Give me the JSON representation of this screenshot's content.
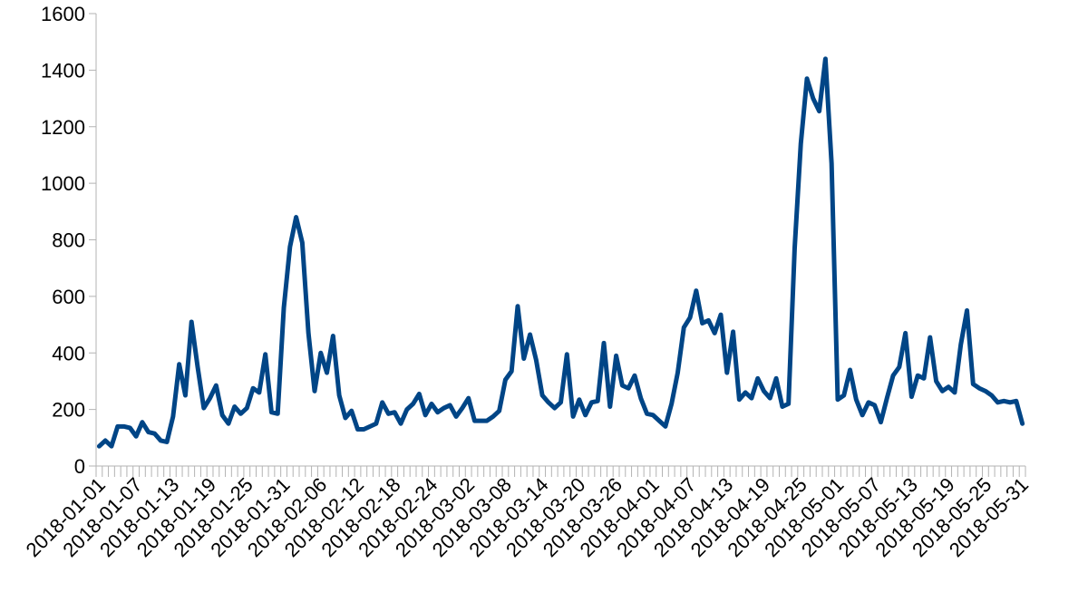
{
  "chart_data": {
    "type": "line",
    "title": "",
    "xlabel": "",
    "ylabel": "",
    "ylim": [
      0,
      1600
    ],
    "yticks": [
      0,
      200,
      400,
      600,
      800,
      1000,
      1200,
      1400,
      1600
    ],
    "x_start": "2018-01-01",
    "x_end": "2018-05-31",
    "xtick_labels": [
      "2018-01-01",
      "2018-01-07",
      "2018-01-13",
      "2018-01-19",
      "2018-01-25",
      "2018-01-31",
      "2018-02-06",
      "2018-02-12",
      "2018-02-18",
      "2018-02-24",
      "2018-03-02",
      "2018-03-08",
      "2018-03-14",
      "2018-03-20",
      "2018-03-26",
      "2018-04-01",
      "2018-04-07",
      "2018-04-13",
      "2018-04-19",
      "2018-04-25",
      "2018-05-01",
      "2018-05-07",
      "2018-05-13",
      "2018-05-19",
      "2018-05-25",
      "2018-05-31"
    ],
    "grid": false,
    "legend": "none",
    "line_color": "#004586",
    "series": [
      {
        "values": [
          70,
          90,
          70,
          140,
          140,
          135,
          105,
          155,
          120,
          115,
          90,
          85,
          175,
          360,
          250,
          510,
          350,
          205,
          240,
          285,
          180,
          150,
          210,
          185,
          205,
          275,
          260,
          395,
          190,
          185,
          560,
          775,
          880,
          790,
          470,
          265,
          400,
          330,
          460,
          250,
          170,
          195,
          130,
          130,
          140,
          150,
          225,
          185,
          190,
          150,
          200,
          220,
          255,
          180,
          220,
          190,
          205,
          215,
          175,
          205,
          240,
          160,
          160,
          160,
          175,
          195,
          305,
          335,
          565,
          380,
          465,
          375,
          250,
          225,
          205,
          225,
          395,
          175,
          235,
          180,
          225,
          230,
          435,
          210,
          390,
          285,
          275,
          320,
          240,
          185,
          180,
          160,
          140,
          220,
          330,
          490,
          525,
          620,
          505,
          515,
          470,
          535,
          330,
          475,
          235,
          260,
          240,
          310,
          265,
          240,
          310,
          210,
          220,
          770,
          1140,
          1370,
          1300,
          1255,
          1440,
          1070,
          235,
          250,
          340,
          235,
          180,
          225,
          215,
          155,
          240,
          320,
          350,
          470,
          245,
          320,
          310,
          455,
          300,
          265,
          280,
          260,
          430,
          550,
          290,
          275,
          265,
          250,
          225,
          230,
          225,
          230,
          150
        ]
      }
    ]
  }
}
